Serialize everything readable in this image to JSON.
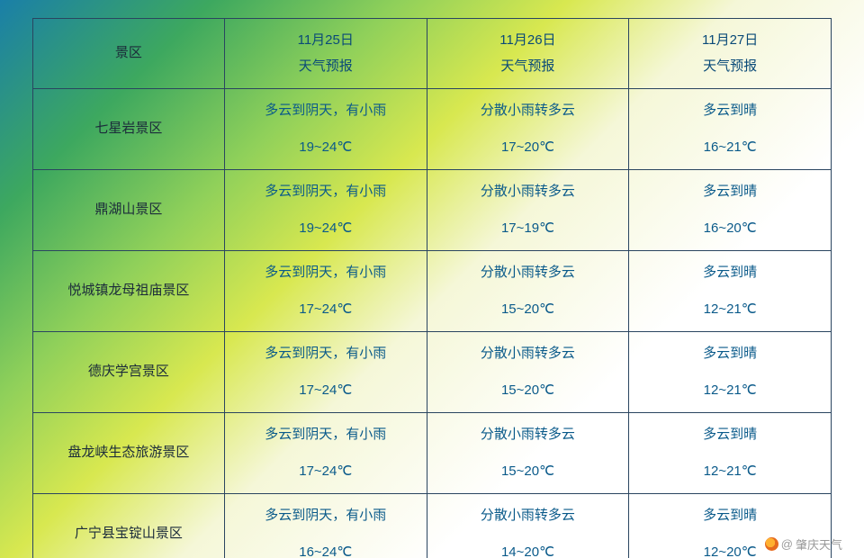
{
  "colors": {
    "border": "#2a4560",
    "headerText": "#0a4a78",
    "scenicText": "#1b2b3a",
    "cellText": "#0a5a8a",
    "watermark": "#9a9a9a",
    "bgGradient": [
      "#1a7fa8",
      "#3da85f",
      "#8fd05a",
      "#d8e850",
      "#f5f7d8",
      "#ffffff"
    ]
  },
  "typography": {
    "cell_fontsize": 15,
    "line_height": 1.9,
    "font_family": "Microsoft YaHei"
  },
  "table": {
    "scenicHeader": "景区",
    "columnWidths": [
      "24%",
      "25.33%",
      "25.33%",
      "25.33%"
    ],
    "dates": [
      {
        "line1": "11月25日",
        "line2": "天气预报"
      },
      {
        "line1": "11月26日",
        "line2": "天气预报"
      },
      {
        "line1": "11月27日",
        "line2": "天气预报"
      }
    ],
    "rows": [
      {
        "name": "七星岩景区",
        "cells": [
          {
            "weather": "多云到阴天，有小雨",
            "temp": "19~24℃"
          },
          {
            "weather": "分散小雨转多云",
            "temp": "17~20℃"
          },
          {
            "weather": "多云到晴",
            "temp": "16~21℃"
          }
        ]
      },
      {
        "name": "鼎湖山景区",
        "cells": [
          {
            "weather": "多云到阴天，有小雨",
            "temp": "19~24℃"
          },
          {
            "weather": "分散小雨转多云",
            "temp": "17~19℃"
          },
          {
            "weather": "多云到晴",
            "temp": "16~20℃"
          }
        ]
      },
      {
        "name": "悦城镇龙母祖庙景区",
        "cells": [
          {
            "weather": "多云到阴天，有小雨",
            "temp": "17~24℃"
          },
          {
            "weather": "分散小雨转多云",
            "temp": "15~20℃"
          },
          {
            "weather": "多云到晴",
            "temp": "12~21℃"
          }
        ]
      },
      {
        "name": "德庆学宫景区",
        "cells": [
          {
            "weather": "多云到阴天，有小雨",
            "temp": "17~24℃"
          },
          {
            "weather": "分散小雨转多云",
            "temp": "15~20℃"
          },
          {
            "weather": "多云到晴",
            "temp": "12~21℃"
          }
        ]
      },
      {
        "name": "盘龙峡生态旅游景区",
        "cells": [
          {
            "weather": "多云到阴天，有小雨",
            "temp": "17~24℃"
          },
          {
            "weather": "分散小雨转多云",
            "temp": "15~20℃"
          },
          {
            "weather": "多云到晴",
            "temp": "12~21℃"
          }
        ]
      },
      {
        "name": "广宁县宝锭山景区",
        "cells": [
          {
            "weather": "多云到阴天，有小雨",
            "temp": "16~24℃"
          },
          {
            "weather": "分散小雨转多云",
            "temp": "14~20℃"
          },
          {
            "weather": "多云到晴",
            "temp": "12~20℃"
          }
        ]
      }
    ]
  },
  "watermark": {
    "prefix": "@",
    "text": "肇庆天气",
    "icon": "weibo-icon"
  }
}
